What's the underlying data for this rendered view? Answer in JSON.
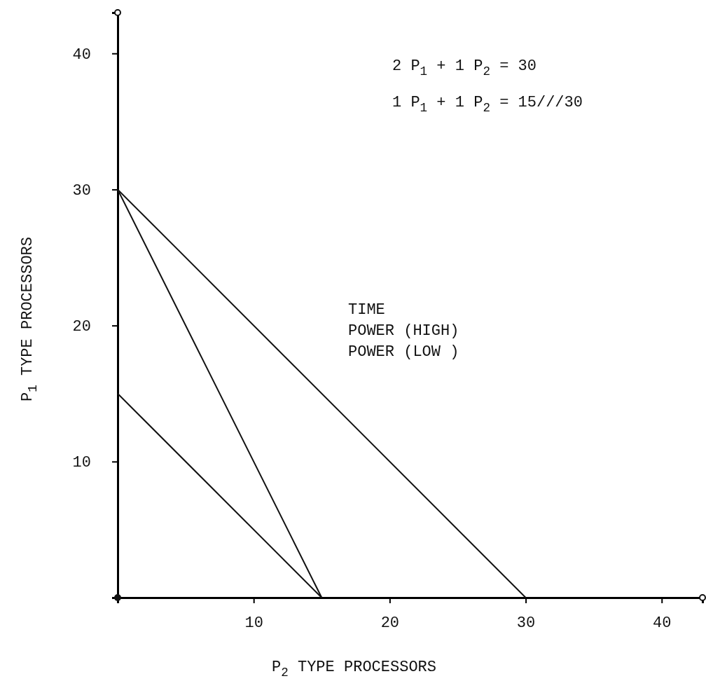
{
  "chart_data": {
    "type": "line",
    "xlabel": "P$_{2}$ TYPE PROCESSORS",
    "ylabel": "P$_{1}$ TYPE PROCESSORS",
    "xlim": [
      0,
      43
    ],
    "ylim": [
      0,
      43
    ],
    "xticks": [
      10,
      20,
      30,
      40
    ],
    "yticks": [
      10,
      20,
      30,
      40
    ],
    "series": [
      {
        "color": "#111111",
        "x": [
          0,
          30
        ],
        "values": [
          30,
          0
        ]
      },
      {
        "color": "#111111",
        "x": [
          0,
          15
        ],
        "values": [
          30,
          0
        ]
      },
      {
        "color": "#111111",
        "x": [
          0,
          15
        ],
        "values": [
          15,
          0
        ]
      }
    ],
    "annotations": [
      "2 P$_{1}$ + 1 P$_{2}$ = 30",
      "1 P$_{1}$ + 1 P$_{2}$ = 15///30",
      "TIME",
      "POWER (HIGH)",
      "POWER (LOW )"
    ]
  }
}
